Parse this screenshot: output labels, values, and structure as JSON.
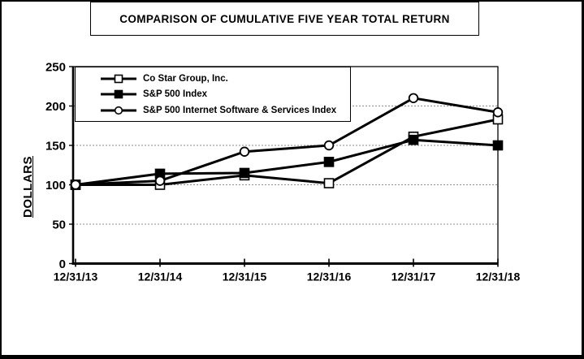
{
  "title": "COMPARISON OF CUMULATIVE FIVE YEAR TOTAL RETURN",
  "y_axis_label": "DOLLARS",
  "colors": {
    "line": "#000000",
    "grid": "#8c8c8c",
    "background": "#ffffff",
    "border": "#000000",
    "marker_fill_open": "#ffffff"
  },
  "chart_data": {
    "type": "line",
    "title": "COMPARISON OF CUMULATIVE FIVE YEAR TOTAL RETURN",
    "xlabel": "",
    "ylabel": "DOLLARS",
    "categories": [
      "12/31/13",
      "12/31/14",
      "12/31/15",
      "12/31/16",
      "12/31/17",
      "12/31/18"
    ],
    "y_ticks": [
      0,
      50,
      100,
      150,
      200,
      250
    ],
    "ylim": [
      0,
      250
    ],
    "grid": "horizontal-dashed",
    "legend_position": "top-left-inside",
    "series": [
      {
        "name": "Co Star Group, Inc.",
        "marker": "open-square",
        "color": "#000000",
        "values": [
          100,
          100,
          112,
          102,
          161,
          183
        ]
      },
      {
        "name": "S&P 500 Index",
        "marker": "filled-square",
        "color": "#000000",
        "values": [
          100,
          114,
          115,
          129,
          157,
          150
        ]
      },
      {
        "name": "S&P 500 Internet Software & Services Index",
        "marker": "open-circle",
        "color": "#000000",
        "values": [
          100,
          105,
          142,
          150,
          210,
          192
        ]
      }
    ]
  }
}
